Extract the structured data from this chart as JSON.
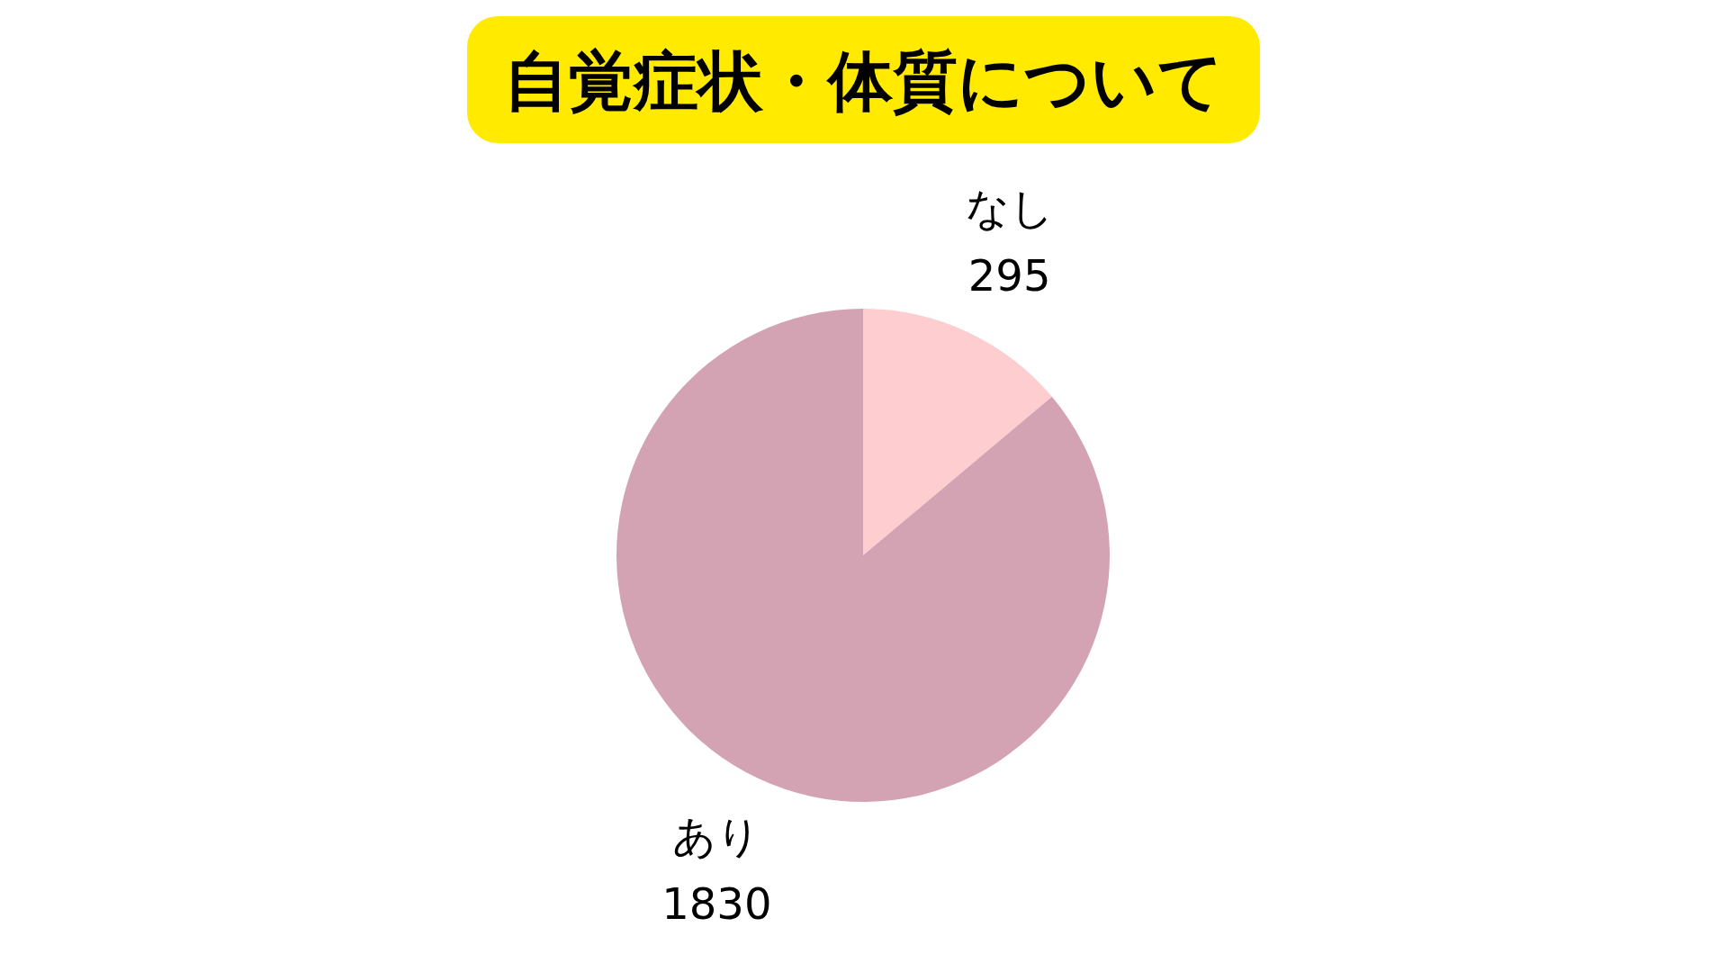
{
  "chart_data": {
    "type": "pie",
    "title": "自覚症状・体質について",
    "categories": [
      "なし",
      "あり"
    ],
    "values": [
      295,
      1830
    ],
    "colors": [
      "#fdcdd0",
      "#d4a3b3"
    ],
    "data_labels": true,
    "legend": false
  }
}
